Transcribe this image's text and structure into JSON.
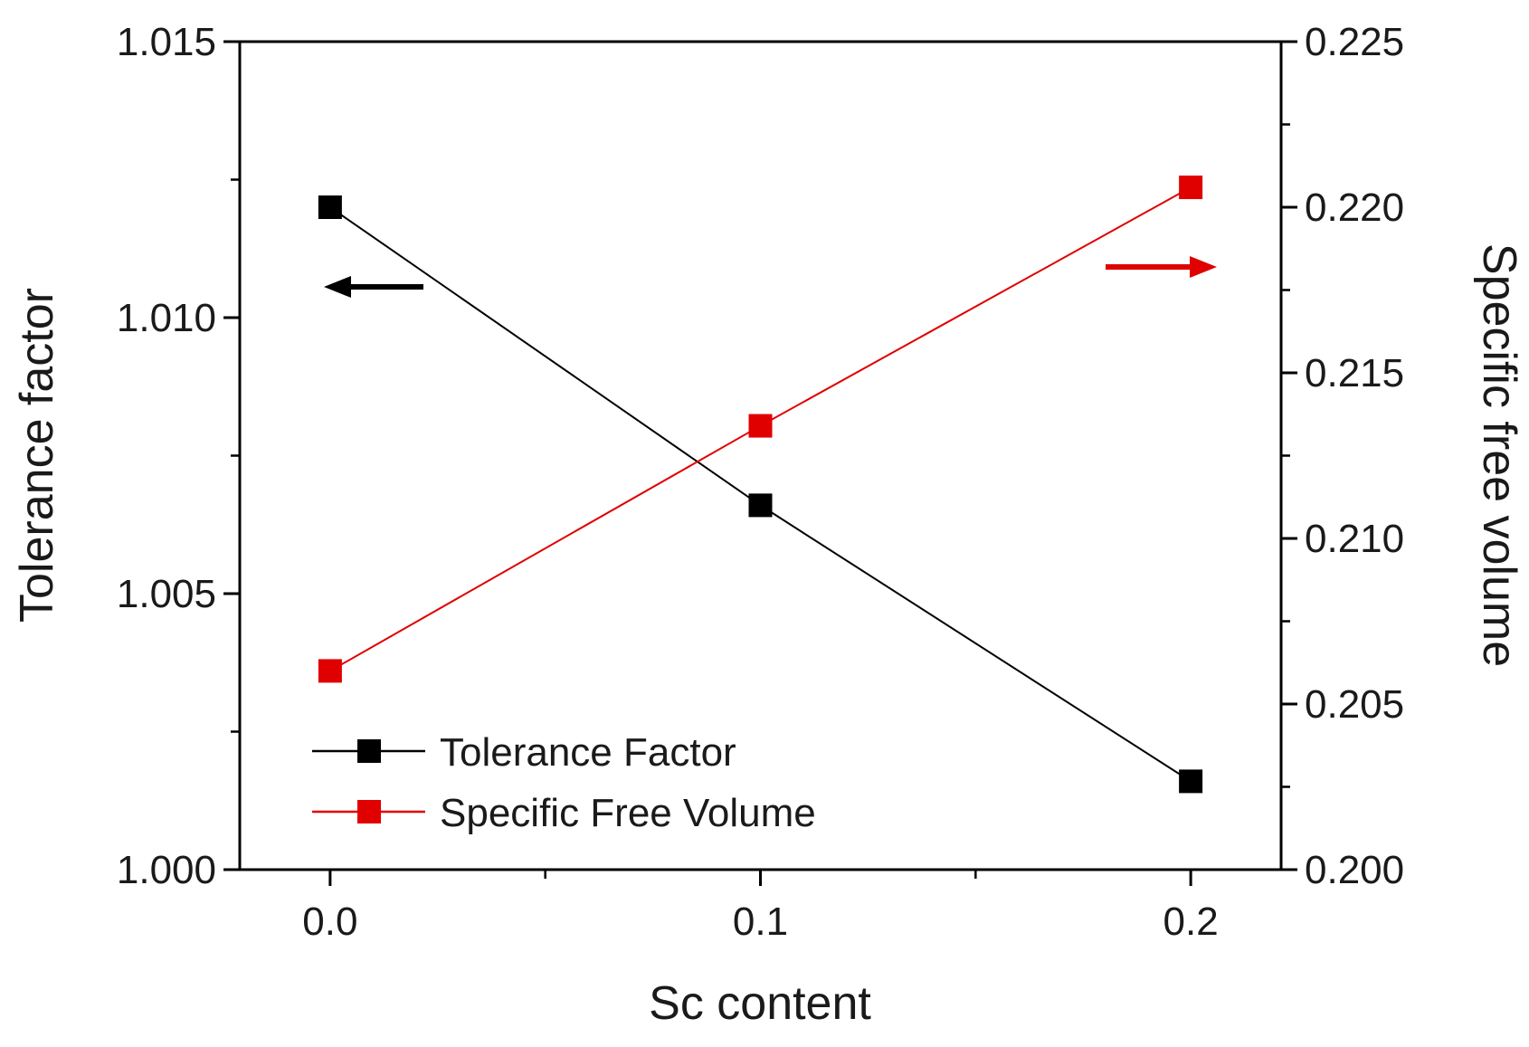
{
  "chart_data": {
    "type": "line",
    "title": "",
    "xlabel": "Sc content",
    "ylabel_left": "Tolerance factor",
    "ylabel_right": "Specific free volume",
    "x": [
      0.0,
      0.1,
      0.2
    ],
    "x_tick_labels": [
      "0.0",
      "0.1",
      "0.2"
    ],
    "xlim": [
      -0.021,
      0.221
    ],
    "ylim_left": [
      1.0,
      1.015
    ],
    "ylim_right": [
      0.2,
      0.225
    ],
    "y_left_ticks": [
      1.0,
      1.005,
      1.01,
      1.015
    ],
    "y_left_tick_labels": [
      "1.000",
      "1.005",
      "1.010",
      "1.015"
    ],
    "y_right_ticks": [
      0.2,
      0.205,
      0.21,
      0.215,
      0.22,
      0.225
    ],
    "y_right_tick_labels": [
      "0.200",
      "0.205",
      "0.210",
      "0.215",
      "0.220",
      "0.225"
    ],
    "grid": false,
    "legend_position": "bottom-left",
    "series": [
      {
        "name": "Tolerance Factor",
        "axis": "left",
        "color": "#000000",
        "marker": "square",
        "values": [
          1.012,
          1.0066,
          1.0016
        ]
      },
      {
        "name": "Specific Free Volume",
        "axis": "right",
        "color": "#e00000",
        "marker": "square",
        "values": [
          0.206,
          0.2134,
          0.2206
        ]
      }
    ],
    "annotations": [
      {
        "type": "arrow",
        "direction": "left",
        "series": "Tolerance Factor",
        "color": "#000000"
      },
      {
        "type": "arrow",
        "direction": "right",
        "series": "Specific Free Volume",
        "color": "#e00000"
      }
    ]
  }
}
